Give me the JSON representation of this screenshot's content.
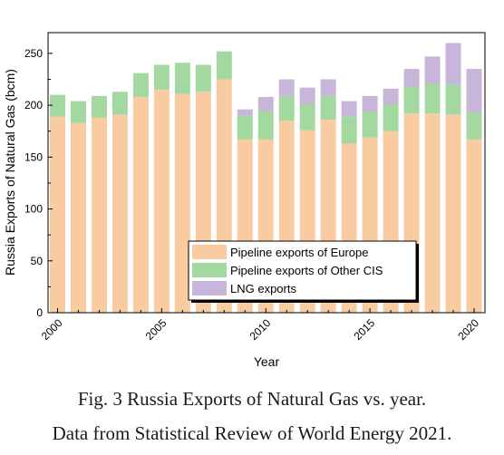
{
  "chart_data": {
    "type": "bar",
    "stacked": true,
    "categories": [
      "2000",
      "2001",
      "2002",
      "2003",
      "2004",
      "2005",
      "2006",
      "2007",
      "2008",
      "2009",
      "2010",
      "2011",
      "2012",
      "2013",
      "2014",
      "2015",
      "2016",
      "2017",
      "2018",
      "2019",
      "2020"
    ],
    "series": [
      {
        "name": "Pipeline exports of Europe",
        "color": "#f9cba0",
        "values": [
          189,
          183,
          188,
          191,
          208,
          215,
          211,
          213,
          225,
          167,
          167,
          185,
          176,
          186,
          163,
          169,
          175,
          192,
          192,
          191,
          167
        ]
      },
      {
        "name": "Pipeline exports of Other CIS",
        "color": "#a3d9a0",
        "values": [
          21,
          21,
          21,
          22,
          23,
          24,
          30,
          26,
          27,
          23,
          27,
          24,
          25,
          23,
          26,
          25,
          26,
          26,
          29,
          29,
          26
        ]
      },
      {
        "name": "LNG exports",
        "color": "#c8b6da",
        "values": [
          0,
          0,
          0,
          0,
          0,
          0,
          0,
          0,
          0,
          6,
          14,
          16,
          16,
          16,
          15,
          15,
          15,
          17,
          26,
          40,
          42
        ]
      }
    ],
    "xlabel": "Year",
    "ylabel": "Russia Exports of Natural Gas (bcm)",
    "ylim": [
      0,
      270
    ],
    "yticks": [
      0,
      50,
      100,
      150,
      200,
      250
    ],
    "xtick_labels": [
      "2000",
      "2005",
      "2010",
      "2015",
      "2020"
    ],
    "legend_position": "bottom-right",
    "grid": false
  },
  "caption": {
    "line1": "Fig. 3 Russia Exports of Natural Gas vs. year.",
    "line2": "Data from Statistical Review of World Energy 2021."
  }
}
